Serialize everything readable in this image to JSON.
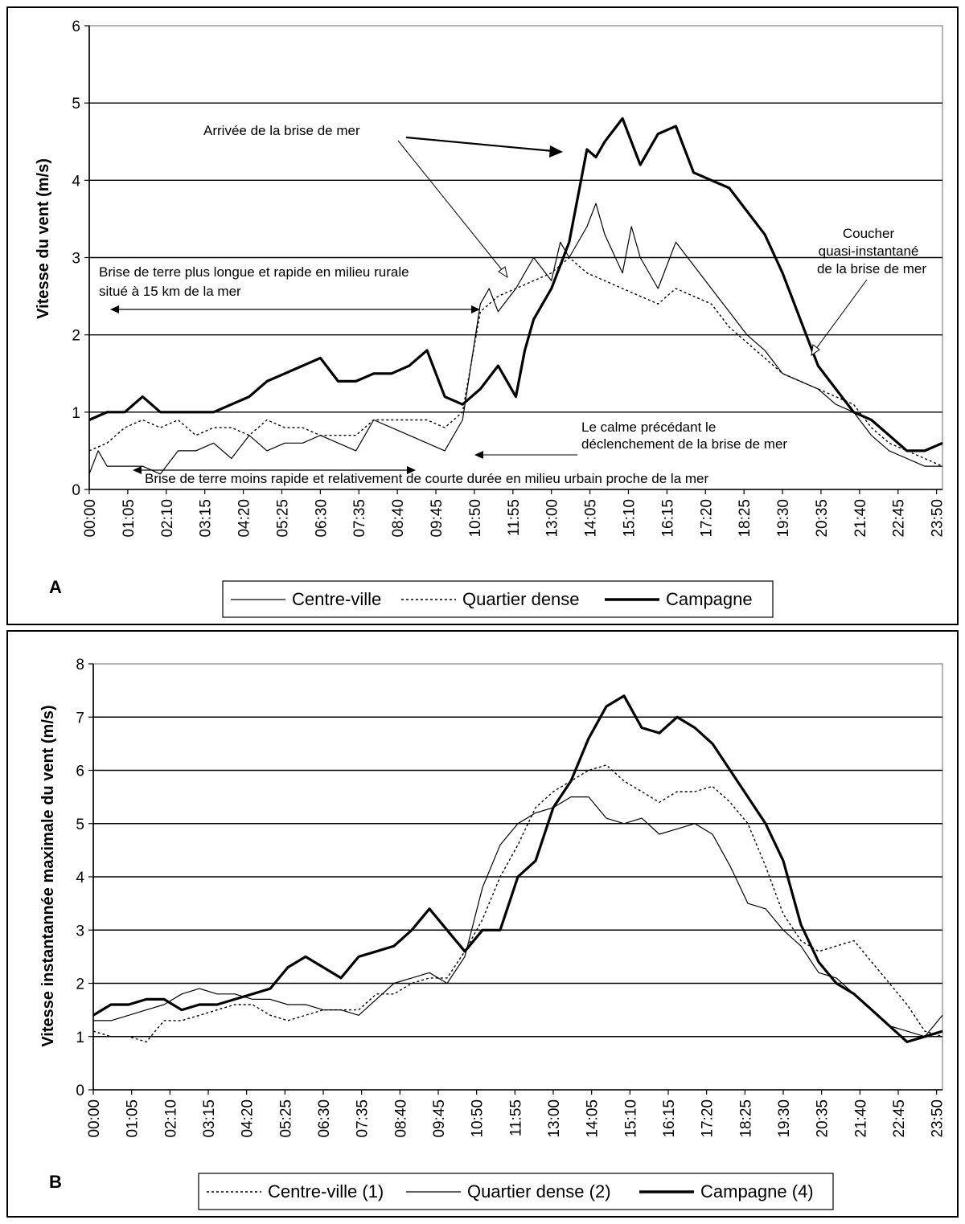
{
  "chart_data": [
    {
      "type": "line",
      "panel_label": "A",
      "ylabel": "Vitesse du vent (m/s)",
      "xlabel": "",
      "ylim": [
        0,
        6
      ],
      "yticks": [
        0,
        1,
        2,
        3,
        4,
        5,
        6
      ],
      "grid": true,
      "legend_position": "bottom",
      "x_range_hours": [
        0,
        24
      ],
      "x_tick_labels": [
        "00:00",
        "01:05",
        "02:10",
        "03:15",
        "04:20",
        "05:25",
        "06:30",
        "07:35",
        "08:40",
        "09:45",
        "10:50",
        "11:55",
        "13:00",
        "14:05",
        "15:10",
        "16:15",
        "17:20",
        "18:25",
        "19:30",
        "20:35",
        "21:40",
        "22:45",
        "23:50"
      ],
      "series": [
        {
          "name": "Centre-ville",
          "style": "thin",
          "x": [
            0,
            0.25,
            0.5,
            1,
            1.5,
            2,
            2.5,
            3,
            3.5,
            4,
            4.5,
            5,
            5.5,
            6,
            6.5,
            7,
            7.5,
            8,
            8.5,
            9,
            9.5,
            10,
            10.5,
            11,
            11.25,
            11.5,
            12,
            12.5,
            13,
            13.25,
            13.5,
            14,
            14.25,
            14.5,
            15,
            15.25,
            15.5,
            16,
            16.5,
            17,
            17.5,
            18,
            18.5,
            19,
            19.5,
            20,
            20.5,
            21,
            21.5,
            22,
            22.5,
            23,
            23.5,
            24
          ],
          "y": [
            0.2,
            0.5,
            0.3,
            0.3,
            0.3,
            0.2,
            0.5,
            0.5,
            0.6,
            0.4,
            0.7,
            0.5,
            0.6,
            0.6,
            0.7,
            0.6,
            0.5,
            0.9,
            0.8,
            0.7,
            0.6,
            0.5,
            0.9,
            2.4,
            2.6,
            2.3,
            2.6,
            3.0,
            2.7,
            3.2,
            3.0,
            3.4,
            3.7,
            3.3,
            2.8,
            3.4,
            3.0,
            2.6,
            3.2,
            2.9,
            2.6,
            2.3,
            2.0,
            1.8,
            1.5,
            1.4,
            1.3,
            1.1,
            1.0,
            0.7,
            0.5,
            0.4,
            0.3,
            0.3
          ]
        },
        {
          "name": "Quartier dense",
          "style": "dotted",
          "x": [
            0,
            0.5,
            1,
            1.5,
            2,
            2.5,
            3,
            3.5,
            4,
            4.5,
            5,
            5.5,
            6,
            6.5,
            7,
            7.5,
            8,
            8.5,
            9,
            9.5,
            10,
            10.5,
            11,
            11.5,
            12,
            12.5,
            13,
            13.5,
            14,
            14.5,
            15,
            15.5,
            16,
            16.5,
            17,
            17.5,
            18,
            18.5,
            19,
            19.5,
            20,
            20.5,
            21,
            21.5,
            22,
            22.5,
            23,
            23.5,
            24
          ],
          "y": [
            0.5,
            0.6,
            0.8,
            0.9,
            0.8,
            0.9,
            0.7,
            0.8,
            0.8,
            0.7,
            0.9,
            0.8,
            0.8,
            0.7,
            0.7,
            0.7,
            0.9,
            0.9,
            0.9,
            0.9,
            0.8,
            1.0,
            2.3,
            2.5,
            2.6,
            2.7,
            2.8,
            3.0,
            2.8,
            2.7,
            2.6,
            2.5,
            2.4,
            2.6,
            2.5,
            2.4,
            2.1,
            1.9,
            1.7,
            1.5,
            1.4,
            1.3,
            1.2,
            1.1,
            0.8,
            0.6,
            0.5,
            0.4,
            0.3
          ]
        },
        {
          "name": "Campagne",
          "style": "thick",
          "x": [
            0,
            0.5,
            1,
            1.5,
            2,
            2.5,
            3,
            3.5,
            4,
            4.5,
            5,
            5.5,
            6,
            6.5,
            7,
            7.5,
            8,
            8.5,
            9,
            9.5,
            10,
            10.5,
            11,
            11.5,
            12,
            12.25,
            12.5,
            13,
            13.5,
            14,
            14.25,
            14.5,
            15,
            15.5,
            16,
            16.5,
            17,
            17.5,
            18,
            18.5,
            19,
            19.5,
            20,
            20.5,
            21,
            21.5,
            22,
            22.5,
            23,
            23.5,
            24
          ],
          "y": [
            0.9,
            1.0,
            1.0,
            1.2,
            1.0,
            1.0,
            1.0,
            1.0,
            1.1,
            1.2,
            1.4,
            1.5,
            1.6,
            1.7,
            1.4,
            1.4,
            1.5,
            1.5,
            1.6,
            1.8,
            1.2,
            1.1,
            1.3,
            1.6,
            1.2,
            1.8,
            2.2,
            2.6,
            3.2,
            4.4,
            4.3,
            4.5,
            4.8,
            4.2,
            4.6,
            4.7,
            4.1,
            4.0,
            3.9,
            3.6,
            3.3,
            2.8,
            2.2,
            1.6,
            1.3,
            1.0,
            0.9,
            0.7,
            0.5,
            0.5,
            0.6
          ]
        }
      ],
      "annotations": [
        {
          "lines": [
            "Arrivée de la brise de mer"
          ]
        },
        {
          "lines": [
            "Coucher",
            "quasi-instantané",
            "de la brise de mer"
          ]
        },
        {
          "lines": [
            "Brise de terre plus longue et rapide en milieu rurale",
            "situé à 15 km de la mer"
          ]
        },
        {
          "lines": [
            "Le calme précédant le",
            "déclenchement de la brise de mer"
          ]
        },
        {
          "lines": [
            "Brise de terre moins rapide et relativement de courte durée en milieu urbain proche de la mer"
          ]
        }
      ]
    },
    {
      "type": "line",
      "panel_label": "B",
      "ylabel": "Vitesse instantannée maximale du vent (m/s)",
      "xlabel": "",
      "ylim": [
        0,
        8
      ],
      "yticks": [
        0,
        1,
        2,
        3,
        4,
        5,
        6,
        7,
        8
      ],
      "grid": true,
      "legend_position": "bottom",
      "x_range_hours": [
        0,
        24
      ],
      "x_tick_labels": [
        "00:00",
        "01:05",
        "02:10",
        "03:15",
        "04:20",
        "05:25",
        "06:30",
        "07:35",
        "08:40",
        "09:45",
        "10:50",
        "11:55",
        "13:00",
        "14:05",
        "15:10",
        "16:15",
        "17:20",
        "18:25",
        "19:30",
        "20:35",
        "21:40",
        "22:45",
        "23:50"
      ],
      "series": [
        {
          "name": "Centre-ville (1)",
          "style": "dotted",
          "x": [
            0,
            0.5,
            1,
            1.5,
            2,
            2.5,
            3,
            3.5,
            4,
            4.5,
            5,
            5.5,
            6,
            6.5,
            7,
            7.5,
            8,
            8.5,
            9,
            9.5,
            10,
            10.5,
            11,
            11.5,
            12,
            12.5,
            13,
            13.5,
            14,
            14.5,
            15,
            15.5,
            16,
            16.5,
            17,
            17.5,
            18,
            18.5,
            19,
            19.5,
            20,
            20.5,
            21,
            21.5,
            22,
            22.5,
            23,
            23.5,
            24
          ],
          "y": [
            1.1,
            1.0,
            1.0,
            0.9,
            1.3,
            1.3,
            1.4,
            1.5,
            1.6,
            1.6,
            1.4,
            1.3,
            1.4,
            1.5,
            1.5,
            1.5,
            1.8,
            1.8,
            2.0,
            2.1,
            2.1,
            2.6,
            3.2,
            4.0,
            4.6,
            5.3,
            5.6,
            5.8,
            6.0,
            6.1,
            5.8,
            5.6,
            5.4,
            5.6,
            5.6,
            5.7,
            5.4,
            5.0,
            4.2,
            3.3,
            2.8,
            2.6,
            2.7,
            2.8,
            2.4,
            2.0,
            1.6,
            1.1,
            1.0
          ]
        },
        {
          "name": "Quartier dense (2)",
          "style": "thin",
          "x": [
            0,
            0.5,
            1,
            1.5,
            2,
            2.5,
            3,
            3.5,
            4,
            4.5,
            5,
            5.5,
            6,
            6.5,
            7,
            7.5,
            8,
            8.5,
            9,
            9.5,
            10,
            10.5,
            11,
            11.5,
            12,
            12.5,
            13,
            13.5,
            14,
            14.5,
            15,
            15.5,
            16,
            16.5,
            17,
            17.5,
            18,
            18.5,
            19,
            19.5,
            20,
            20.5,
            21,
            21.5,
            22,
            22.5,
            23,
            23.5,
            24
          ],
          "y": [
            1.3,
            1.3,
            1.4,
            1.5,
            1.6,
            1.8,
            1.9,
            1.8,
            1.8,
            1.7,
            1.7,
            1.6,
            1.6,
            1.5,
            1.5,
            1.4,
            1.7,
            2.0,
            2.1,
            2.2,
            2.0,
            2.5,
            3.8,
            4.6,
            5.0,
            5.2,
            5.3,
            5.5,
            5.5,
            5.1,
            5.0,
            5.1,
            4.8,
            4.9,
            5.0,
            4.8,
            4.2,
            3.5,
            3.4,
            3.0,
            2.7,
            2.2,
            2.1,
            1.8,
            1.5,
            1.2,
            1.1,
            1.0,
            1.4
          ]
        },
        {
          "name": "Campagne (4)",
          "style": "thick",
          "x": [
            0,
            0.5,
            1,
            1.5,
            2,
            2.5,
            3,
            3.5,
            4,
            4.5,
            5,
            5.5,
            6,
            6.5,
            7,
            7.5,
            8,
            8.5,
            9,
            9.5,
            10,
            10.5,
            11,
            11.5,
            12,
            12.5,
            13,
            13.5,
            14,
            14.5,
            15,
            15.5,
            16,
            16.5,
            17,
            17.5,
            18,
            18.5,
            19,
            19.5,
            20,
            20.5,
            21,
            21.5,
            22,
            22.5,
            23,
            23.5,
            24
          ],
          "y": [
            1.4,
            1.6,
            1.6,
            1.7,
            1.7,
            1.5,
            1.6,
            1.6,
            1.7,
            1.8,
            1.9,
            2.3,
            2.5,
            2.3,
            2.1,
            2.5,
            2.6,
            2.7,
            3.0,
            3.4,
            3.0,
            2.6,
            3.0,
            3.0,
            4.0,
            4.3,
            5.3,
            5.8,
            6.6,
            7.2,
            7.4,
            6.8,
            6.7,
            7.0,
            6.8,
            6.5,
            6.0,
            5.5,
            5.0,
            4.3,
            3.1,
            2.4,
            2.0,
            1.8,
            1.5,
            1.2,
            0.9,
            1.0,
            1.1
          ]
        }
      ]
    }
  ]
}
